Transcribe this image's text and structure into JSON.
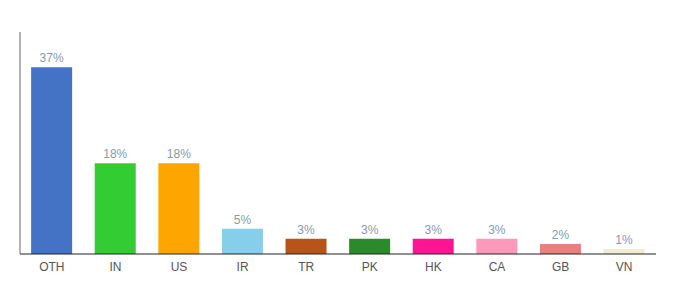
{
  "chart_data": {
    "type": "bar",
    "categories": [
      "OTH",
      "IN",
      "US",
      "IR",
      "TR",
      "PK",
      "HK",
      "CA",
      "GB",
      "VN"
    ],
    "values": [
      37,
      18,
      18,
      5,
      3,
      3,
      3,
      3,
      2,
      1
    ],
    "value_labels": [
      "37%",
      "18%",
      "18%",
      "5%",
      "3%",
      "3%",
      "3%",
      "3%",
      "2%",
      "1%"
    ],
    "data_labels": true,
    "colors": [
      "#4472C4",
      "#33CC33",
      "#FFA500",
      "#87CEEB",
      "#B8531A",
      "#2A8B2A",
      "#FF1493",
      "#FF99BB",
      "#E88080",
      "#F0EDD0"
    ],
    "ylim": [
      0,
      44
    ],
    "grid": false,
    "tick_labels": "x"
  }
}
